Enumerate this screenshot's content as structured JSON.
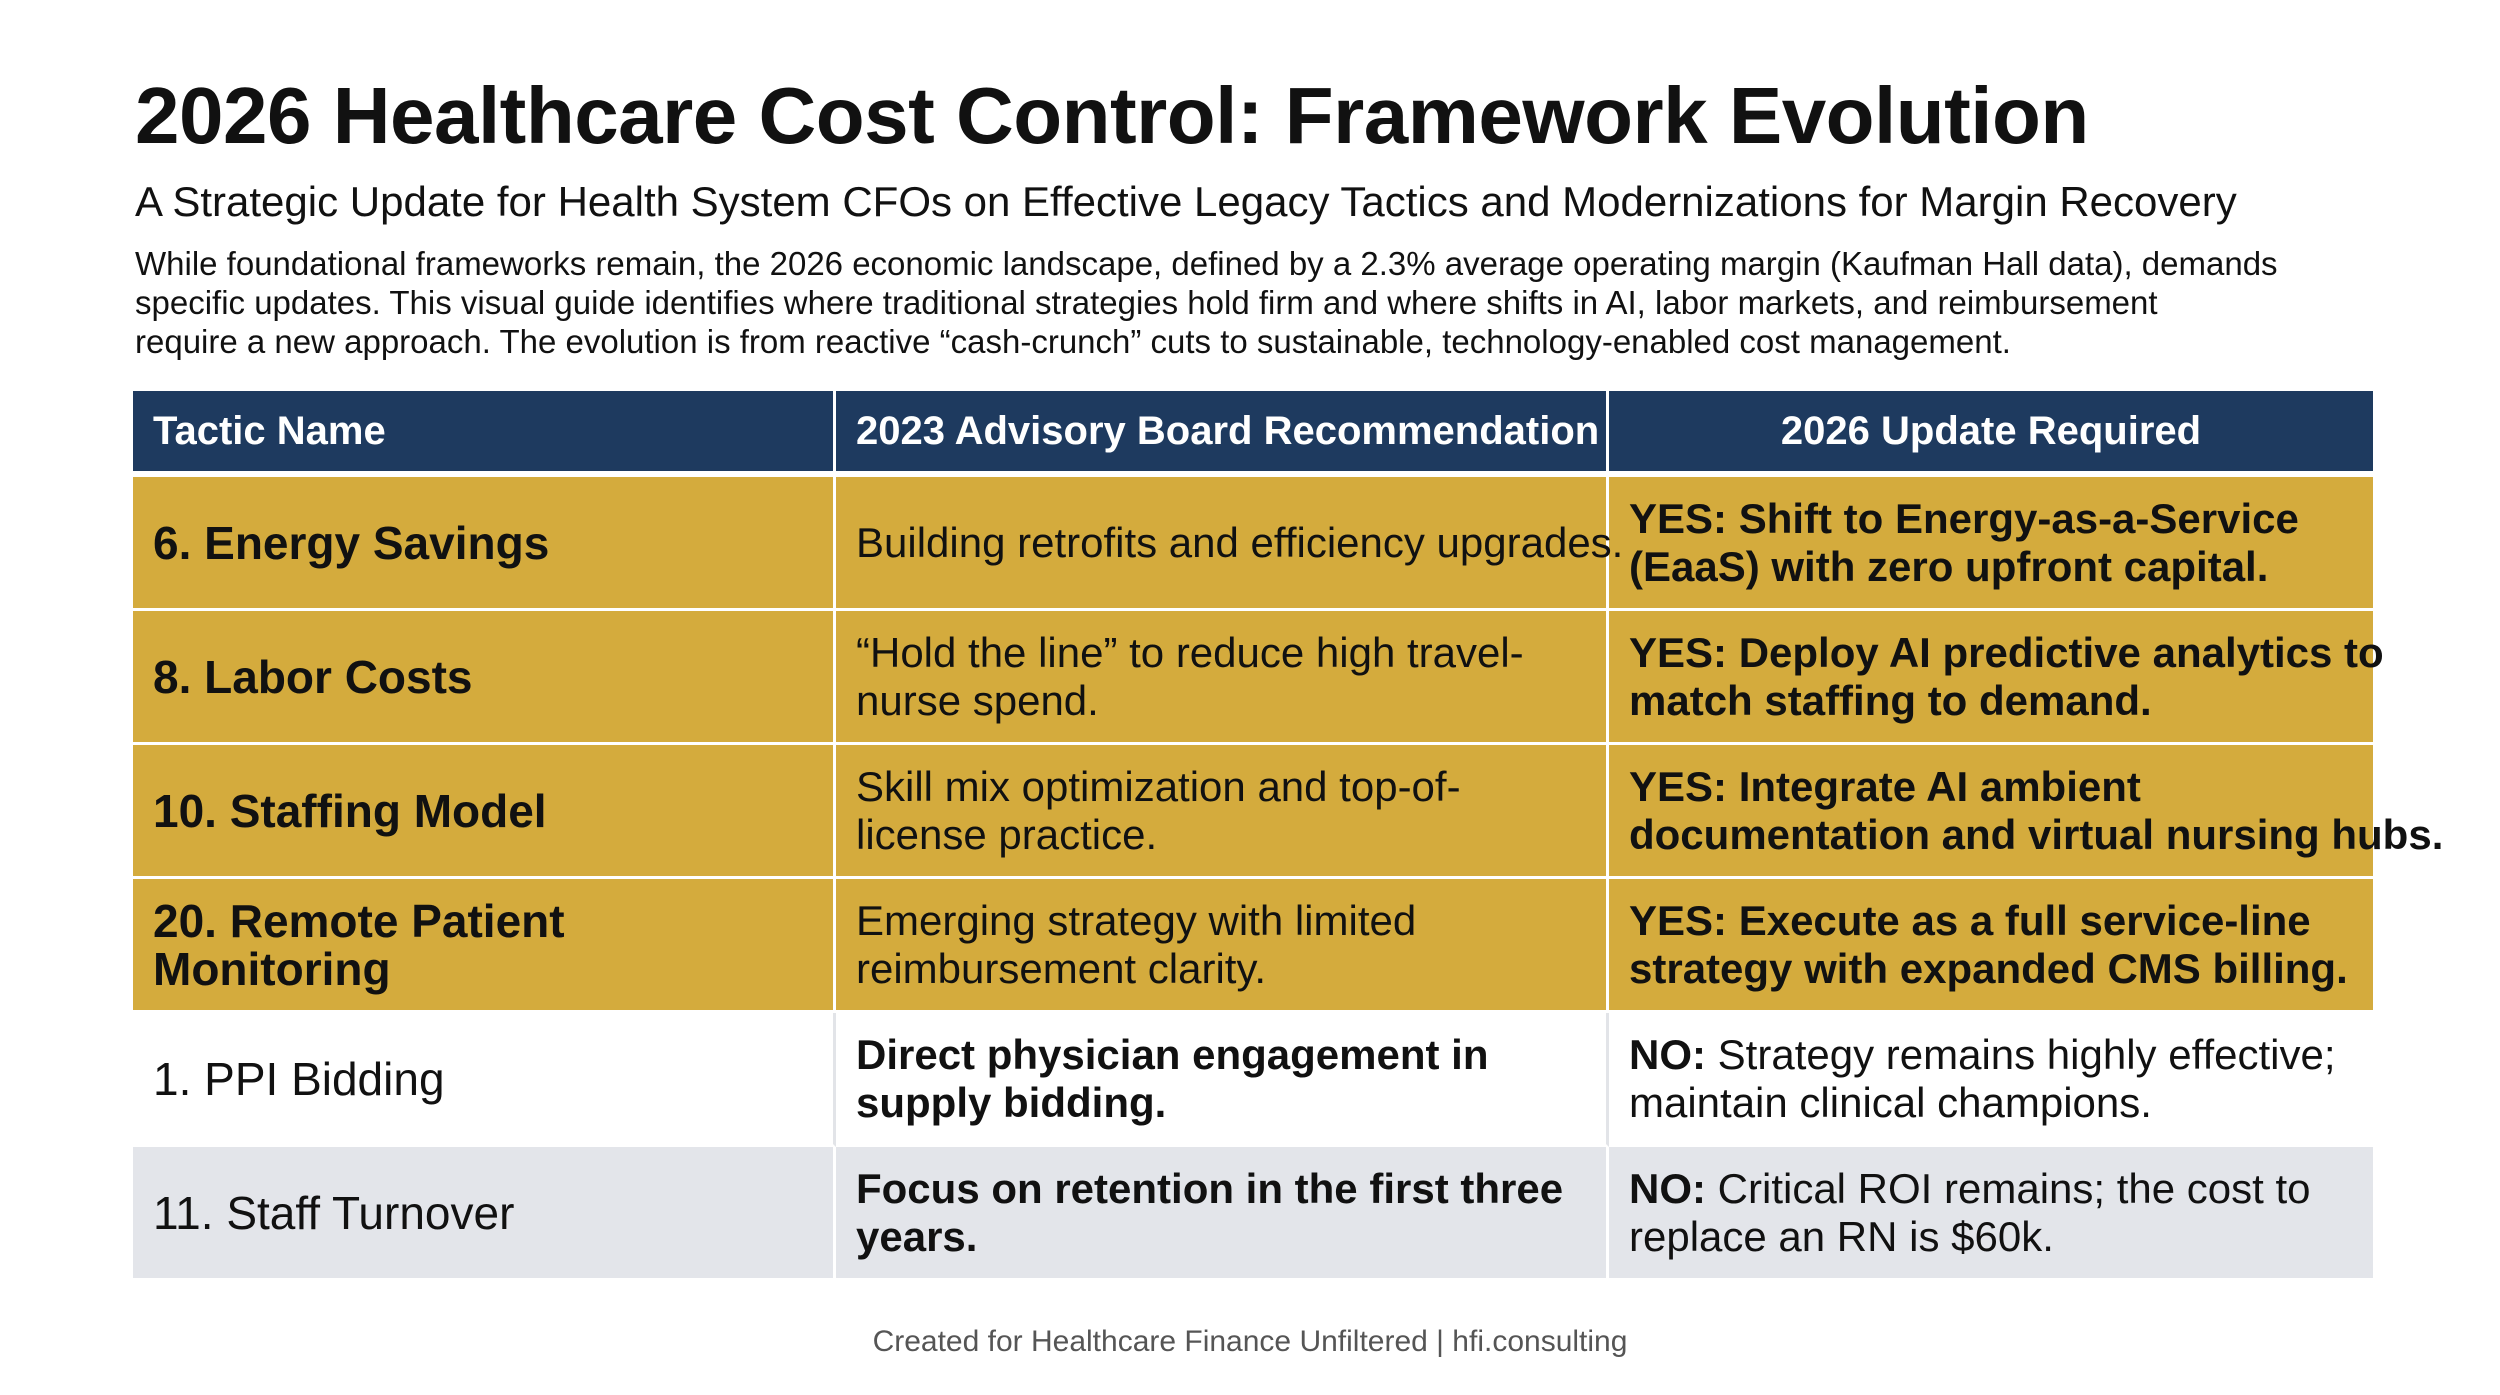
{
  "title": "2026 Healthcare Cost Control: Framework Evolution",
  "subtitle": "A Strategic Update for Health System CFOs on Effective Legacy Tactics and Modernizations for Margin Recovery",
  "intro": {
    "line1": "While foundational frameworks remain, the 2026 economic landscape, defined by a 2.3% average operating margin (Kaufman Hall data), demands",
    "line2": "specific updates. This visual guide identifies where traditional strategies hold firm and where shifts in AI, labor markets, and reimbursement",
    "line3": "require a new approach. The evolution is from reactive “cash-crunch” cuts to sustainable, technology-enabled cost management."
  },
  "table": {
    "headers": [
      "Tactic Name",
      "2023 Advisory Board Recommendation",
      "2026 Update Required"
    ],
    "rows": [
      {
        "name": [
          "6. Energy Savings"
        ],
        "rec": [
          "Building retrofits and efficiency upgrades."
        ],
        "update_lead": "",
        "update": [
          "YES: Shift to Energy-as-a-Service",
          "(EaaS) with zero upfront capital."
        ]
      },
      {
        "name": [
          "8. Labor Costs"
        ],
        "rec": [
          "“Hold the line” to reduce high travel-",
          "nurse spend."
        ],
        "update_lead": "",
        "update": [
          "YES: Deploy AI predictive analytics to",
          "match staffing to demand."
        ]
      },
      {
        "name": [
          "10. Staffing Model"
        ],
        "rec": [
          "Skill mix optimization and top-of-",
          "license practice."
        ],
        "update_lead": "",
        "update": [
          "YES: Integrate AI ambient",
          "documentation and virtual nursing hubs."
        ]
      },
      {
        "name": [
          "20. Remote Patient",
          "Monitoring"
        ],
        "rec": [
          "Emerging strategy with limited",
          "reimbursement clarity."
        ],
        "update_lead": "",
        "update": [
          "YES: Execute as a full service-line",
          "strategy with expanded CMS billing."
        ]
      },
      {
        "name": [
          "1. PPI Bidding"
        ],
        "rec": [
          "Direct physician engagement in",
          "supply bidding."
        ],
        "update_lead": "NO:",
        "update": [
          " Strategy remains highly effective;",
          "maintain clinical champions."
        ]
      },
      {
        "name": [
          "11. Staff Turnover"
        ],
        "rec": [
          "Focus on retention in the first three",
          "years."
        ],
        "update_lead": "NO:",
        "update": [
          " Critical ROI remains; the cost to",
          "replace an RN is $60k."
        ]
      }
    ]
  },
  "footer": "Created for Healthcare Finance Unfiltered | hfi.consulting",
  "colors": {
    "header_navy": "#1e3a5f",
    "gold": "#d4ab3d",
    "grey_row": "#e3e5ea"
  }
}
